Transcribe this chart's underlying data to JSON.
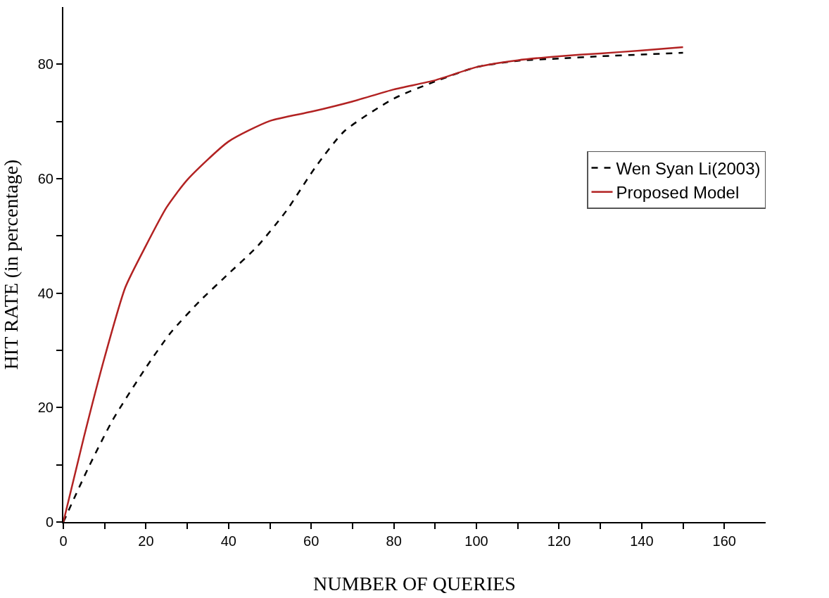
{
  "chart_data": {
    "type": "line",
    "xlabel": "NUMBER OF QUERIES",
    "ylabel": "HIT RATE (in percentage)",
    "xlim": [
      0,
      170
    ],
    "ylim": [
      0,
      90
    ],
    "xticks": [
      0,
      {
        "value": 10,
        "label": null
      },
      20,
      {
        "value": 30,
        "label": null
      },
      40,
      {
        "value": 50,
        "label": null
      },
      60,
      {
        "value": 70,
        "label": null
      },
      80,
      {
        "value": 90,
        "label": null
      },
      100,
      {
        "value": 110,
        "label": null
      },
      120,
      {
        "value": 130,
        "label": null
      },
      140,
      {
        "value": 150,
        "label": null
      },
      160
    ],
    "yticks": [
      0,
      {
        "value": 10,
        "label": null
      },
      20,
      {
        "value": 30,
        "label": null
      },
      40,
      {
        "value": 50,
        "label": null
      },
      60,
      {
        "value": 70,
        "label": null
      },
      80
    ],
    "legend": "right",
    "marker": "none",
    "series": [
      {
        "name": "Wen Syan Li(2003)",
        "color": "#000000",
        "line_style": "dashed",
        "x": [
          0,
          6,
          12,
          20,
          26,
          33,
          40,
          47,
          54,
          61,
          68,
          80,
          90,
          100,
          110,
          120,
          130,
          140,
          150
        ],
        "values": [
          0,
          9.4,
          17.9,
          27,
          33.1,
          38.6,
          43.4,
          48.2,
          54.4,
          62,
          68.3,
          74,
          77,
          79.5,
          80.6,
          81,
          81.4,
          81.7,
          82
        ]
      },
      {
        "name": "Proposed Model",
        "color": "#b22222",
        "line_style": "solid",
        "x": [
          0,
          5,
          10,
          15,
          20,
          25,
          30,
          40,
          50,
          60,
          70,
          80,
          90,
          100,
          110,
          120,
          130,
          140,
          150
        ],
        "values": [
          0,
          14.9,
          28.8,
          41,
          48.3,
          55,
          59.8,
          66.5,
          70.1,
          71.7,
          73.5,
          75.6,
          77.2,
          79.5,
          80.7,
          81.4,
          81.9,
          82.4,
          83
        ]
      }
    ]
  }
}
